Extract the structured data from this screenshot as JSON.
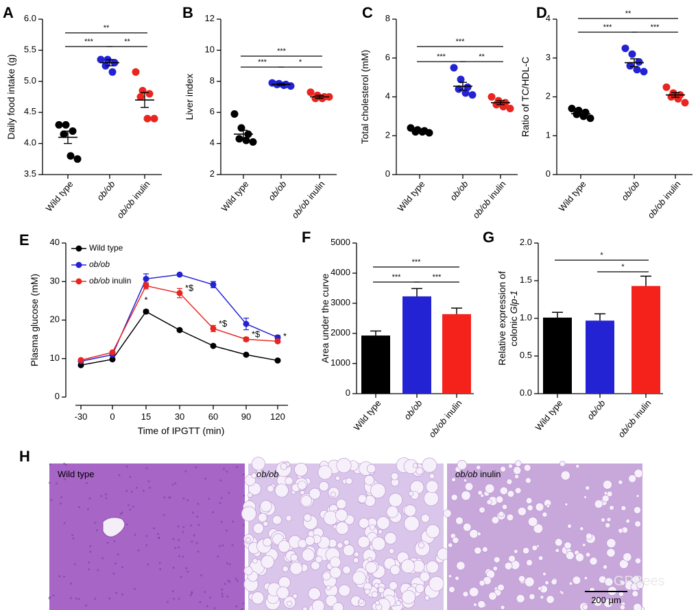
{
  "chart_data": [
    {
      "panel": "A",
      "type": "strip",
      "ylabel": "Daily food intake (g)",
      "categories": [
        "Wild type",
        "ob/ob",
        "ob/ob inulin"
      ],
      "values": [
        [
          4.3,
          4.3,
          4.2,
          4.15,
          3.8,
          3.75
        ],
        [
          5.35,
          5.35,
          5.3,
          5.25,
          5.15
        ],
        [
          5.15,
          4.85,
          4.8,
          4.75,
          4.4,
          4.4
        ]
      ],
      "mean": [
        4.1,
        5.3,
        4.7
      ],
      "sem": [
        0.1,
        0.05,
        0.12
      ],
      "colors": [
        "#000000",
        "#2323d4",
        "#e8261f"
      ],
      "ylim": [
        3.5,
        6.0
      ],
      "yticks": [
        3.5,
        {
          "value": 4,
          "label": "4.0"
        },
        4.5,
        {
          "value": 5,
          "label": "5.0"
        },
        5.5,
        {
          "value": 6,
          "label": "6.0"
        }
      ],
      "significance": [
        {
          "from": 0,
          "to": 1,
          "label": "***"
        },
        {
          "from": 1,
          "to": 2,
          "label": "**"
        },
        {
          "from": 0,
          "to": 2,
          "label": "**"
        }
      ]
    },
    {
      "panel": "B",
      "type": "strip",
      "ylabel": "Liver index",
      "categories": [
        "Wild type",
        "ob/ob",
        "ob/ob inulin"
      ],
      "values": [
        [
          5.9,
          5.0,
          4.6,
          4.3,
          4.2,
          4.1
        ],
        [
          7.9,
          7.85,
          7.8,
          7.8,
          7.75,
          7.7
        ],
        [
          7.3,
          7.1,
          7.0,
          6.9,
          6.9,
          7.0
        ]
      ],
      "mean": [
        4.6,
        7.8,
        7.0
      ],
      "sem": [
        0.25,
        0.05,
        0.1
      ],
      "colors": [
        "#000000",
        "#2323d4",
        "#e8261f"
      ],
      "ylim": [
        2,
        12
      ],
      "yticks": [
        2,
        4,
        6,
        8,
        10,
        12
      ],
      "significance": [
        {
          "from": 0,
          "to": 1,
          "label": "***"
        },
        {
          "from": 1,
          "to": 2,
          "label": "*"
        },
        {
          "from": 0,
          "to": 2,
          "label": "***"
        }
      ]
    },
    {
      "panel": "C",
      "type": "strip",
      "ylabel": "Total cholesterol (mM)",
      "categories": [
        "Wild type",
        "ob/ob",
        "ob/ob inulin"
      ],
      "values": [
        [
          2.4,
          2.3,
          2.25,
          2.2,
          2.2,
          2.15
        ],
        [
          5.5,
          4.9,
          4.5,
          4.4,
          4.2,
          4.1
        ],
        [
          4.0,
          3.8,
          3.7,
          3.6,
          3.5,
          3.4
        ]
      ],
      "mean": [
        2.25,
        4.55,
        3.7
      ],
      "sem": [
        0.05,
        0.2,
        0.1
      ],
      "colors": [
        "#000000",
        "#2323d4",
        "#e8261f"
      ],
      "ylim": [
        0,
        8
      ],
      "yticks": [
        0,
        2,
        4,
        6,
        8
      ],
      "significance": [
        {
          "from": 0,
          "to": 1,
          "label": "***"
        },
        {
          "from": 1,
          "to": 2,
          "label": "**"
        },
        {
          "from": 0,
          "to": 2,
          "label": "***"
        }
      ]
    },
    {
      "panel": "D",
      "type": "strip",
      "ylabel": "Ratio of TC/HDL-C",
      "categories": [
        "Wild type",
        "ob/ob",
        "ob/ob inulin"
      ],
      "values": [
        [
          1.7,
          1.65,
          1.6,
          1.55,
          1.5,
          1.45
        ],
        [
          3.25,
          3.1,
          2.9,
          2.8,
          2.7,
          2.65
        ],
        [
          2.25,
          2.1,
          2.05,
          2.0,
          1.95,
          1.85
        ]
      ],
      "mean": [
        1.57,
        2.88,
        2.05
      ],
      "sem": [
        0.05,
        0.1,
        0.06
      ],
      "colors": [
        "#000000",
        "#2323d4",
        "#e8261f"
      ],
      "ylim": [
        0,
        4
      ],
      "yticks": [
        0,
        1,
        2,
        3,
        4
      ],
      "significance": [
        {
          "from": 0,
          "to": 1,
          "label": "***"
        },
        {
          "from": 1,
          "to": 2,
          "label": "***"
        },
        {
          "from": 0,
          "to": 2,
          "label": "**"
        }
      ]
    },
    {
      "panel": "E",
      "type": "line",
      "xlabel": "Time of IPGTT (min)",
      "ylabel": "Plasma glucose (mM)",
      "categories": [
        "-30",
        "0",
        "15",
        "30",
        "60",
        "90",
        "120"
      ],
      "series": [
        {
          "name": "Wild type",
          "color": "#000000",
          "values": [
            8.3,
            9.8,
            22.2,
            17.4,
            13.3,
            11.0,
            9.5
          ],
          "errors": [
            0.3,
            0.3,
            0.4,
            0.3,
            0.3,
            0.3,
            0.3
          ]
        },
        {
          "name": "ob/ob",
          "color": "#2323d4",
          "values": [
            9.3,
            11.0,
            30.7,
            31.8,
            29.2,
            19.0,
            15.5
          ],
          "errors": [
            0.3,
            0.3,
            1.3,
            0.3,
            0.8,
            1.5,
            0.5
          ]
        },
        {
          "name": "ob/ob inulin",
          "color": "#e8261f",
          "values": [
            9.6,
            11.6,
            28.9,
            27.0,
            17.8,
            15.0,
            14.5
          ],
          "errors": [
            0.3,
            0.3,
            0.8,
            1.2,
            0.8,
            0.5,
            0.4
          ],
          "point_labels": [
            null,
            null,
            "*",
            "*$",
            "*$",
            "*$",
            "*"
          ]
        }
      ],
      "ylim": [
        0,
        40
      ],
      "yticks": [
        0,
        10,
        20,
        30,
        40
      ],
      "legend": "top-left"
    },
    {
      "panel": "F",
      "type": "bar",
      "ylabel": "Area under the curve",
      "categories": [
        "Wild type",
        "ob/ob",
        "ob/ob inulin"
      ],
      "values": [
        1930,
        3230,
        2640
      ],
      "errors": [
        150,
        260,
        200
      ],
      "colors": [
        "#000000",
        "#2323d4",
        "#f5221b"
      ],
      "ylim": [
        0,
        5000
      ],
      "yticks": [
        0,
        1000,
        2000,
        3000,
        4000,
        5000
      ],
      "significance": [
        {
          "from": 0,
          "to": 1,
          "label": "***"
        },
        {
          "from": 1,
          "to": 2,
          "label": "***"
        },
        {
          "from": 0,
          "to": 2,
          "label": "***"
        }
      ]
    },
    {
      "panel": "G",
      "type": "bar",
      "ylabel": [
        "Relative expression of",
        "colonic Glp-1"
      ],
      "categories": [
        "Wild type",
        "ob/ob",
        "ob/ob inulin"
      ],
      "values": [
        1.01,
        0.97,
        1.43
      ],
      "errors": [
        0.07,
        0.09,
        0.13
      ],
      "colors": [
        "#000000",
        "#2323d4",
        "#f5221b"
      ],
      "ylim": [
        0,
        2
      ],
      "yticks": [
        {
          "value": 0,
          "label": "0.0"
        },
        0.5,
        {
          "value": 1,
          "label": "1.0"
        },
        1.5,
        {
          "value": 2,
          "label": "2.0"
        }
      ],
      "significance": [
        {
          "from": 1,
          "to": 2,
          "label": "*"
        },
        {
          "from": 0,
          "to": 2,
          "label": "*"
        }
      ]
    }
  ],
  "micrographs": {
    "panel": "H",
    "images": [
      {
        "label": "Wild type"
      },
      {
        "label": "ob/ob"
      },
      {
        "label": "ob/ob inulin"
      }
    ],
    "scale_bar": "200 μm",
    "watermark": "GPBees"
  }
}
